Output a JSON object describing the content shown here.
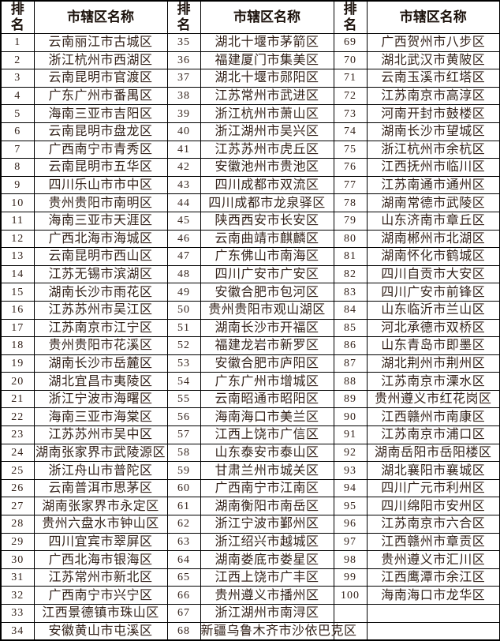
{
  "table": {
    "header": {
      "rank_label": "排名",
      "name_label": "市辖区名称"
    },
    "groups": [
      {
        "rows": [
          {
            "rank": "1",
            "name": "云南丽江市古城区"
          },
          {
            "rank": "2",
            "name": "浙江杭州市西湖区"
          },
          {
            "rank": "3",
            "name": "云南昆明市官渡区"
          },
          {
            "rank": "4",
            "name": "广东广州市番禺区"
          },
          {
            "rank": "5",
            "name": "海南三亚市吉阳区"
          },
          {
            "rank": "6",
            "name": "云南昆明市盘龙区"
          },
          {
            "rank": "7",
            "name": "广西南宁市青秀区"
          },
          {
            "rank": "8",
            "name": "云南昆明市五华区"
          },
          {
            "rank": "9",
            "name": "四川乐山市市中区"
          },
          {
            "rank": "10",
            "name": "贵州贵阳市南明区"
          },
          {
            "rank": "11",
            "name": "海南三亚市天涯区"
          },
          {
            "rank": "12",
            "name": "广西北海市海城区"
          },
          {
            "rank": "13",
            "name": "云南昆明市西山区"
          },
          {
            "rank": "14",
            "name": "江苏无锡市滨湖区"
          },
          {
            "rank": "15",
            "name": "湖南长沙市雨花区"
          },
          {
            "rank": "16",
            "name": "江苏苏州市吴江区"
          },
          {
            "rank": "17",
            "name": "江苏南京市江宁区"
          },
          {
            "rank": "18",
            "name": "贵州贵阳市花溪区"
          },
          {
            "rank": "19",
            "name": "湖南长沙市岳麓区"
          },
          {
            "rank": "20",
            "name": "湖北宜昌市夷陵区"
          },
          {
            "rank": "21",
            "name": "浙江宁波市海曙区"
          },
          {
            "rank": "22",
            "name": "海南三亚市海棠区"
          },
          {
            "rank": "23",
            "name": "江苏苏州市吴中区"
          },
          {
            "rank": "24",
            "name": "湖南张家界市武陵源区"
          },
          {
            "rank": "25",
            "name": "浙江舟山市普陀区"
          },
          {
            "rank": "26",
            "name": "云南普洱市思茅区"
          },
          {
            "rank": "27",
            "name": "湖南张家界市永定区"
          },
          {
            "rank": "28",
            "name": "贵州六盘水市钟山区"
          },
          {
            "rank": "29",
            "name": "四川宜宾市翠屏区"
          },
          {
            "rank": "30",
            "name": "广西北海市银海区"
          },
          {
            "rank": "31",
            "name": "江苏常州市新北区"
          },
          {
            "rank": "32",
            "name": "广西南宁市兴宁区"
          },
          {
            "rank": "33",
            "name": "江西景德镇市珠山区"
          },
          {
            "rank": "34",
            "name": "安徽黄山市屯溪区"
          }
        ]
      },
      {
        "rows": [
          {
            "rank": "35",
            "name": "湖北十堰市茅箭区"
          },
          {
            "rank": "36",
            "name": "福建厦门市集美区"
          },
          {
            "rank": "37",
            "name": "湖北十堰市郧阳区"
          },
          {
            "rank": "38",
            "name": "江苏常州市武进区"
          },
          {
            "rank": "39",
            "name": "浙江杭州市萧山区"
          },
          {
            "rank": "40",
            "name": "浙江湖州市吴兴区"
          },
          {
            "rank": "41",
            "name": "江苏苏州市虎丘区"
          },
          {
            "rank": "42",
            "name": "安徽池州市贵池区"
          },
          {
            "rank": "43",
            "name": "四川成都市双流区"
          },
          {
            "rank": "44",
            "name": "四川成都市龙泉驿区"
          },
          {
            "rank": "45",
            "name": "陕西西安市长安区"
          },
          {
            "rank": "46",
            "name": "云南曲靖市麒麟区"
          },
          {
            "rank": "47",
            "name": "广东佛山市南海区"
          },
          {
            "rank": "48",
            "name": "四川广安市广安区"
          },
          {
            "rank": "49",
            "name": "安徽合肥市包河区"
          },
          {
            "rank": "50",
            "name": "贵州贵阳市观山湖区"
          },
          {
            "rank": "51",
            "name": "湖南长沙市开福区"
          },
          {
            "rank": "52",
            "name": "福建龙岩市新罗区"
          },
          {
            "rank": "53",
            "name": "安徽合肥市庐阳区"
          },
          {
            "rank": "54",
            "name": "广东广州市增城区"
          },
          {
            "rank": "55",
            "name": "云南昭通市昭阳区"
          },
          {
            "rank": "56",
            "name": "海南海口市美兰区"
          },
          {
            "rank": "57",
            "name": "江西上饶市广信区"
          },
          {
            "rank": "58",
            "name": "山东泰安市泰山区"
          },
          {
            "rank": "59",
            "name": "甘肃兰州市城关区"
          },
          {
            "rank": "60",
            "name": "广西南宁市江南区"
          },
          {
            "rank": "61",
            "name": "湖南衡阳市南岳区"
          },
          {
            "rank": "62",
            "name": "浙江宁波市鄞州区"
          },
          {
            "rank": "63",
            "name": "浙江绍兴市越城区"
          },
          {
            "rank": "64",
            "name": "湖南娄底市娄星区"
          },
          {
            "rank": "65",
            "name": "江西上饶市广丰区"
          },
          {
            "rank": "66",
            "name": "贵州遵义市播州区"
          },
          {
            "rank": "67",
            "name": "浙江湖州市南浔区"
          },
          {
            "rank": "68",
            "name": "新疆乌鲁木齐市沙依巴克区"
          }
        ]
      },
      {
        "rows": [
          {
            "rank": "69",
            "name": "广西贺州市八步区"
          },
          {
            "rank": "70",
            "name": "湖北武汉市黄陂区"
          },
          {
            "rank": "71",
            "name": "云南玉溪市红塔区"
          },
          {
            "rank": "72",
            "name": "江苏南京市高淳区"
          },
          {
            "rank": "73",
            "name": "河南开封市鼓楼区"
          },
          {
            "rank": "74",
            "name": "湖南长沙市望城区"
          },
          {
            "rank": "75",
            "name": "浙江杭州市余杭区"
          },
          {
            "rank": "76",
            "name": "江西抚州市临川区"
          },
          {
            "rank": "77",
            "name": "江苏南通市通州区"
          },
          {
            "rank": "78",
            "name": "湖南常德市武陵区"
          },
          {
            "rank": "79",
            "name": "山东济南市章丘区"
          },
          {
            "rank": "80",
            "name": "湖南郴州市北湖区"
          },
          {
            "rank": "81",
            "name": "湖南怀化市鹤城区"
          },
          {
            "rank": "82",
            "name": "四川自贡市大安区"
          },
          {
            "rank": "83",
            "name": "四川广安市前锋区"
          },
          {
            "rank": "84",
            "name": "山东临沂市兰山区"
          },
          {
            "rank": "85",
            "name": "河北承德市双桥区"
          },
          {
            "rank": "86",
            "name": "山东青岛市即墨区"
          },
          {
            "rank": "87",
            "name": "湖北荆州市荆州区"
          },
          {
            "rank": "88",
            "name": "江苏南京市溧水区"
          },
          {
            "rank": "89",
            "name": "贵州遵义市红花岗区"
          },
          {
            "rank": "90",
            "name": "江西赣州市南康区"
          },
          {
            "rank": "91",
            "name": "江苏南京市浦口区"
          },
          {
            "rank": "92",
            "name": "湖南岳阳市岳阳楼区"
          },
          {
            "rank": "93",
            "name": "湖北襄阳市襄城区"
          },
          {
            "rank": "94",
            "name": "四川广元市利州区"
          },
          {
            "rank": "95",
            "name": "四川绵阳市安州区"
          },
          {
            "rank": "96",
            "name": "江苏南京市六合区"
          },
          {
            "rank": "97",
            "name": "江西赣州市章贡区"
          },
          {
            "rank": "98",
            "name": "贵州遵义市汇川区"
          },
          {
            "rank": "99",
            "name": "江西鹰潭市余江区"
          },
          {
            "rank": "100",
            "name": "海南海口市龙华区"
          },
          {
            "rank": "",
            "name": ""
          },
          {
            "rank": "",
            "name": ""
          }
        ]
      }
    ]
  },
  "colors": {
    "border": "#000000",
    "text": "#33221a",
    "background": "#ffffff"
  }
}
